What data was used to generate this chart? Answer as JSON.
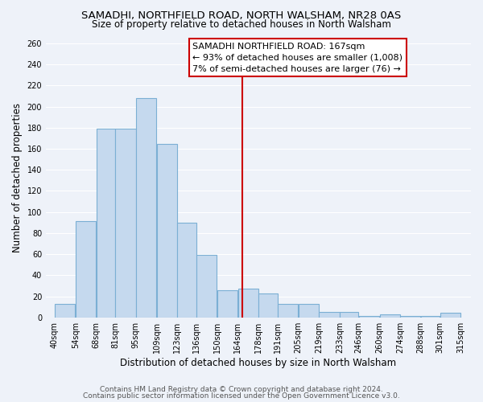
{
  "title": "SAMADHI, NORTHFIELD ROAD, NORTH WALSHAM, NR28 0AS",
  "subtitle": "Size of property relative to detached houses in North Walsham",
  "xlabel": "Distribution of detached houses by size in North Walsham",
  "ylabel": "Number of detached properties",
  "bar_left_edges": [
    40,
    54,
    68,
    81,
    95,
    109,
    123,
    136,
    150,
    164,
    178,
    191,
    205,
    219,
    233,
    246,
    260,
    274,
    288,
    301
  ],
  "bar_heights": [
    13,
    91,
    179,
    179,
    208,
    165,
    90,
    59,
    26,
    27,
    23,
    13,
    13,
    5,
    5,
    1,
    3,
    1,
    1,
    4
  ],
  "bar_widths": [
    14,
    14,
    13,
    14,
    14,
    14,
    13,
    14,
    14,
    14,
    13,
    14,
    14,
    14,
    13,
    14,
    14,
    14,
    13,
    14
  ],
  "tick_labels": [
    "40sqm",
    "54sqm",
    "68sqm",
    "81sqm",
    "95sqm",
    "109sqm",
    "123sqm",
    "136sqm",
    "150sqm",
    "164sqm",
    "178sqm",
    "191sqm",
    "205sqm",
    "219sqm",
    "233sqm",
    "246sqm",
    "260sqm",
    "274sqm",
    "288sqm",
    "301sqm",
    "315sqm"
  ],
  "tick_positions": [
    40,
    54,
    68,
    81,
    95,
    109,
    123,
    136,
    150,
    164,
    178,
    191,
    205,
    219,
    233,
    246,
    260,
    274,
    288,
    301,
    315
  ],
  "bar_color": "#c5d9ee",
  "bar_edge_color": "#7bafd4",
  "vline_x": 167,
  "vline_color": "#cc0000",
  "annotation_title": "SAMADHI NORTHFIELD ROAD: 167sqm",
  "annotation_line1": "← 93% of detached houses are smaller (1,008)",
  "annotation_line2": "7% of semi-detached houses are larger (76) →",
  "annotation_box_facecolor": "#ffffff",
  "annotation_box_edgecolor": "#cc0000",
  "ylim": [
    0,
    265
  ],
  "xlim": [
    34,
    322
  ],
  "footer1": "Contains HM Land Registry data © Crown copyright and database right 2024.",
  "footer2": "Contains public sector information licensed under the Open Government Licence v3.0.",
  "bg_color": "#eef2f9",
  "title_fontsize": 9.5,
  "subtitle_fontsize": 8.5,
  "axis_label_fontsize": 8.5,
  "tick_fontsize": 7,
  "annotation_fontsize": 8,
  "footer_fontsize": 6.5,
  "grid_color": "#ffffff",
  "ytick_step": 20
}
